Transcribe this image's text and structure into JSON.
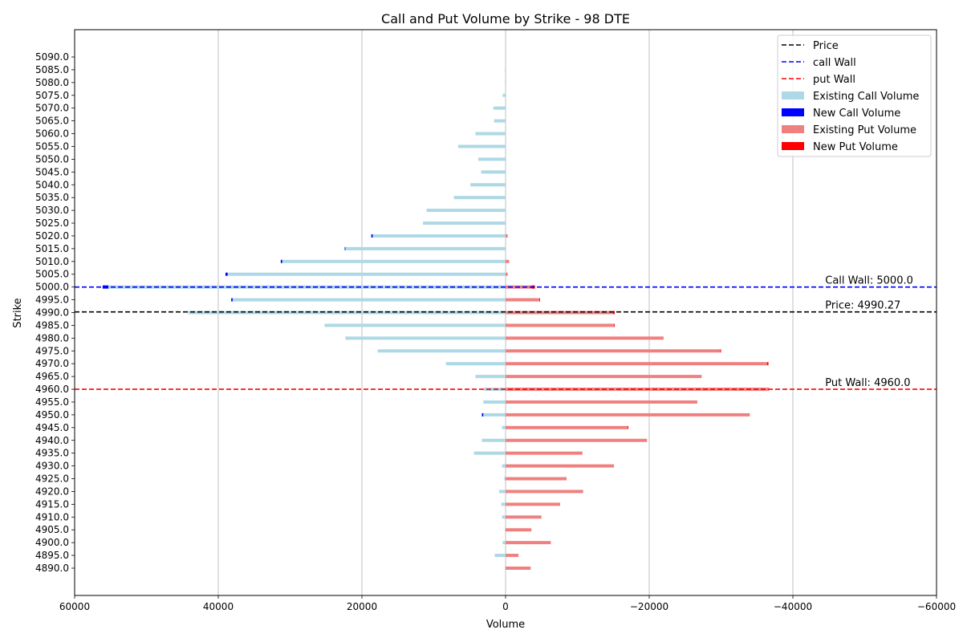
{
  "chart_data": {
    "type": "bar",
    "orientation": "horizontal",
    "title": "Call and Put Volume by Strike - 98 DTE",
    "xlabel": "Volume",
    "ylabel": "Strike",
    "xlim": [
      60000,
      -60000
    ],
    "x_axis_inverted": true,
    "xticks": [
      60000,
      40000,
      20000,
      0,
      -20000,
      -40000,
      -60000
    ],
    "xtick_labels": [
      "60000",
      "40000",
      "20000",
      "0",
      "−20000",
      "−40000",
      "−60000"
    ],
    "grid": "vertical",
    "legend_position": "top-right",
    "categories": [
      "4890.0",
      "4895.0",
      "4900.0",
      "4905.0",
      "4910.0",
      "4915.0",
      "4920.0",
      "4925.0",
      "4930.0",
      "4935.0",
      "4940.0",
      "4945.0",
      "4950.0",
      "4955.0",
      "4960.0",
      "4965.0",
      "4970.0",
      "4975.0",
      "4980.0",
      "4985.0",
      "4990.0",
      "4995.0",
      "5000.0",
      "5005.0",
      "5010.0",
      "5015.0",
      "5020.0",
      "5025.0",
      "5030.0",
      "5035.0",
      "5040.0",
      "5045.0",
      "5050.0",
      "5055.0",
      "5060.0",
      "5065.0",
      "5070.0",
      "5075.0",
      "5080.0",
      "5085.0",
      "5090.0"
    ],
    "series": [
      {
        "name": "Existing Call Volume",
        "color": "#add8e6",
        "values": [
          0,
          1500,
          400,
          100,
          500,
          600,
          900,
          200,
          500,
          4400,
          3300,
          500,
          3100,
          3100,
          3000,
          4200,
          8300,
          17800,
          22300,
          25200,
          44200,
          38000,
          55300,
          38700,
          31100,
          22300,
          18500,
          11500,
          11000,
          7200,
          4900,
          3400,
          3800,
          6600,
          4200,
          1600,
          1700,
          400,
          100,
          100,
          0
        ]
      },
      {
        "name": "New Call Volume",
        "color": "#0000ff",
        "values": [
          0,
          0,
          0,
          0,
          0,
          0,
          0,
          0,
          0,
          0,
          0,
          0,
          200,
          0,
          0,
          0,
          0,
          0,
          0,
          0,
          0,
          200,
          800,
          300,
          200,
          100,
          200,
          0,
          0,
          0,
          0,
          0,
          0,
          0,
          0,
          0,
          0,
          0,
          0,
          0,
          0
        ]
      },
      {
        "name": "Existing Put Volume",
        "color": "#f08080",
        "values": [
          -3500,
          -1800,
          -6300,
          -3600,
          -5000,
          -7600,
          -10800,
          -8500,
          -15100,
          -10700,
          -19700,
          -17000,
          -34000,
          -26700,
          -36700,
          -27300,
          -36400,
          -29900,
          -22000,
          -15100,
          -15000,
          -4700,
          -3600,
          -300,
          -500,
          0,
          -300,
          0,
          0,
          0,
          0,
          0,
          0,
          0,
          0,
          0,
          0,
          0,
          0,
          0,
          0
        ]
      },
      {
        "name": "New Put Volume",
        "color": "#ff0000",
        "values": [
          0,
          0,
          0,
          0,
          0,
          0,
          0,
          0,
          0,
          0,
          0,
          -100,
          0,
          0,
          0,
          0,
          -200,
          -100,
          0,
          -100,
          -200,
          -100,
          -500,
          0,
          0,
          0,
          0,
          0,
          0,
          0,
          0,
          0,
          0,
          0,
          0,
          0,
          0,
          0,
          0,
          0,
          0
        ]
      }
    ],
    "reference_lines": [
      {
        "name": "Price",
        "strike": 4990.27,
        "color": "#000000",
        "style": "dashed",
        "label": "Price: 4990.27"
      },
      {
        "name": "call Wall",
        "strike": 5000.0,
        "color": "#0000ff",
        "style": "dashed",
        "label": "Call Wall: 5000.0"
      },
      {
        "name": "put Wall",
        "strike": 4960.0,
        "color": "#ff0000",
        "style": "dashed",
        "label": "Put Wall: 4960.0"
      }
    ],
    "legend": [
      "Price",
      "call Wall",
      "put Wall",
      "Existing Call Volume",
      "New Call Volume",
      "Existing Put Volume",
      "New Put Volume"
    ]
  }
}
